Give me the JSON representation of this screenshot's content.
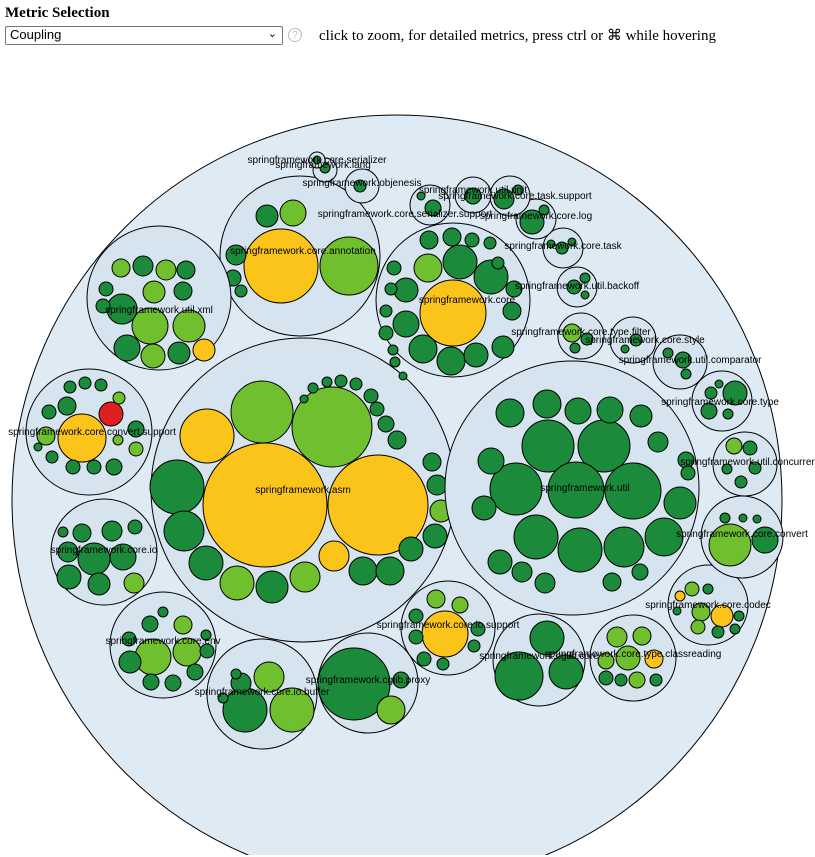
{
  "header": {
    "title": "Metric Selection",
    "metric_selected": "Coupling",
    "help_icon": "question-icon",
    "hint": "click to zoom, for detailed metrics, press ctrl or ⌘ while hovering"
  },
  "colors": {
    "root_fill": "#deeaf4",
    "package_fill": "#d6e4f0",
    "stroke": "#000000",
    "dark_green": "#1b8a3a",
    "light_green": "#6fbf2f",
    "yellow": "#fbc41a",
    "red": "#e02020"
  },
  "packages": [
    "springframework.core.serializer",
    "springframework.lang",
    "springframework.objenesis",
    "springframework.util.unit",
    "springframework.core.task.support",
    "springframework.core.serializer.support",
    "springframework.core.log",
    "springframework.core.annotation",
    "springframework.core.task",
    "springframework.core",
    "springframework.util.xml",
    "springframework.util.backoff",
    "springframework.core.type.filter",
    "springframework.core.style",
    "springframework.util.comparator",
    "springframework.core.type",
    "springframework.core.convert.support",
    "springframework.util.concurrent",
    "springframework.asm",
    "springframework.util",
    "springframework.core.io",
    "springframework.core.convert",
    "springframework.core.codec",
    "springframework.core.io.support",
    "springframework.core.env",
    "springframework.cglib.core",
    "springframework.core.type.classreading",
    "springframework.cglib.proxy",
    "springframework.core.io.buffer"
  ]
}
